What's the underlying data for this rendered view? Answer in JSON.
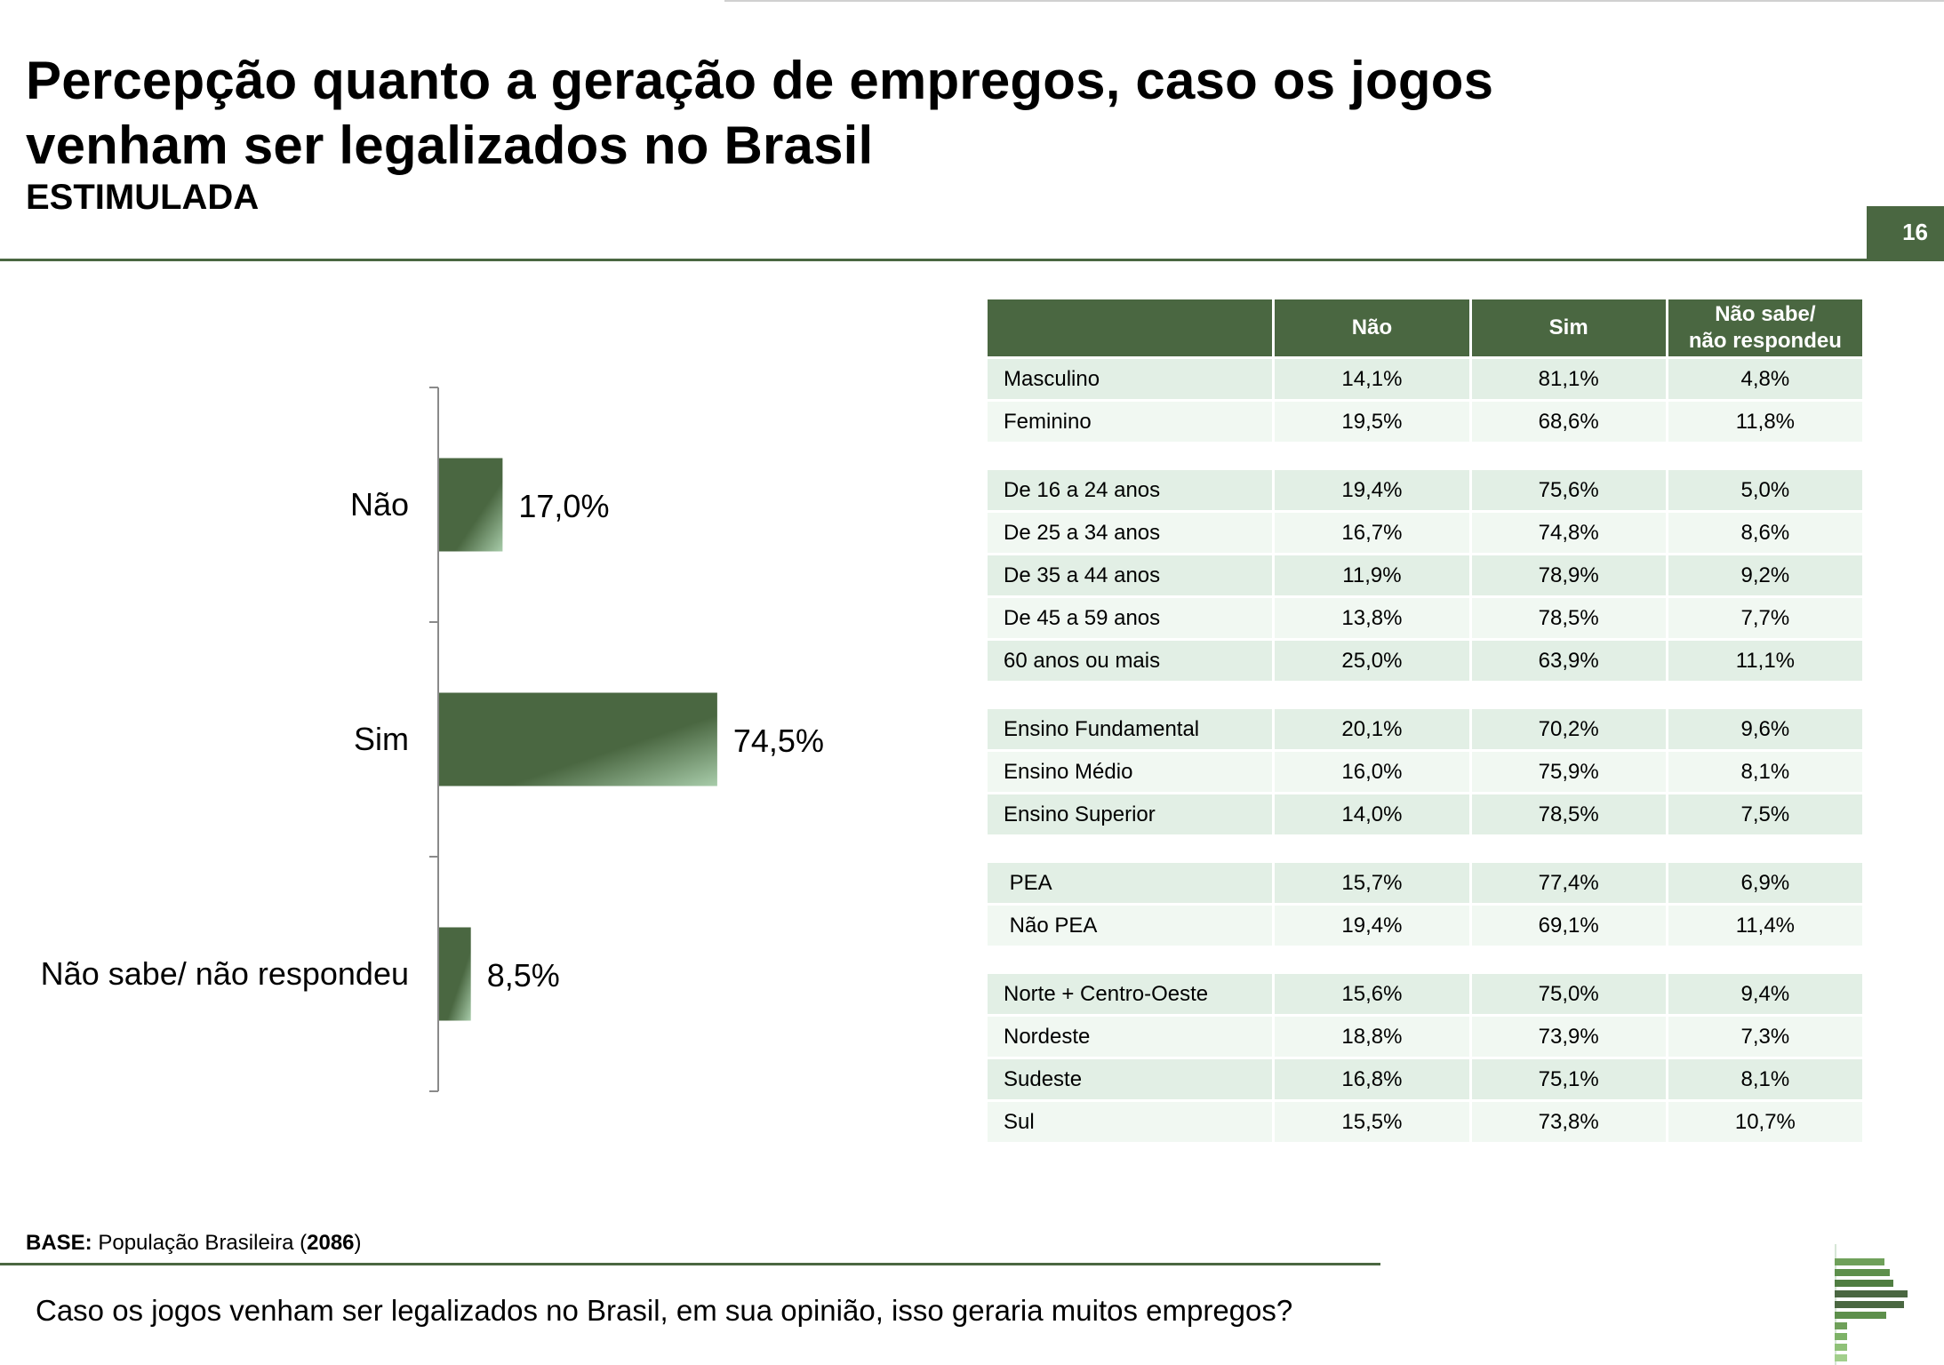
{
  "header": {
    "title_line1": "Percepção quanto a geração de empregos, caso os jogos",
    "title_line2": "venham ser legalizados no Brasil",
    "subtitle": "ESTIMULADA",
    "page_number": "16"
  },
  "chart_data": {
    "type": "bar",
    "orientation": "horizontal",
    "categories": [
      "Não",
      "Sim",
      "Não sabe/ não respondeu"
    ],
    "values": [
      17.0,
      74.5,
      8.5
    ],
    "value_labels": [
      "17,0%",
      "74,5%",
      "8,5%"
    ],
    "unit": "%",
    "xlim": [
      0,
      100
    ],
    "grid": false,
    "legend": "none",
    "bar_color": "#4a6741"
  },
  "table": {
    "columns": [
      "",
      "Não",
      "Sim",
      "Não sabe/\nnão respondeu"
    ],
    "groups": [
      [
        [
          "Masculino",
          "14,1%",
          "81,1%",
          "4,8%"
        ],
        [
          "Feminino",
          "19,5%",
          "68,6%",
          "11,8%"
        ]
      ],
      [
        [
          "De 16 a 24 anos",
          "19,4%",
          "75,6%",
          "5,0%"
        ],
        [
          "De 25 a 34 anos",
          "16,7%",
          "74,8%",
          "8,6%"
        ],
        [
          "De 35 a 44 anos",
          "11,9%",
          "78,9%",
          "9,2%"
        ],
        [
          "De 45 a 59 anos",
          "13,8%",
          "78,5%",
          "7,7%"
        ],
        [
          "60 anos ou mais",
          "25,0%",
          "63,9%",
          "11,1%"
        ]
      ],
      [
        [
          "Ensino Fundamental",
          "20,1%",
          "70,2%",
          "9,6%"
        ],
        [
          "Ensino Médio",
          "16,0%",
          "75,9%",
          "8,1%"
        ],
        [
          "Ensino Superior",
          "14,0%",
          "78,5%",
          "7,5%"
        ]
      ],
      [
        [
          " PEA",
          "15,7%",
          "77,4%",
          "6,9%"
        ],
        [
          " Não PEA",
          "19,4%",
          "69,1%",
          "11,4%"
        ]
      ],
      [
        [
          "Norte + Centro-Oeste",
          "15,6%",
          "75,0%",
          "9,4%"
        ],
        [
          "Nordeste",
          "18,8%",
          "73,9%",
          "7,3%"
        ],
        [
          "Sudeste",
          "16,8%",
          "75,1%",
          "8,1%"
        ],
        [
          "Sul",
          "15,5%",
          "73,8%",
          "10,7%"
        ]
      ]
    ]
  },
  "footer": {
    "base_label": "BASE:",
    "base_text": " População Brasileira (",
    "base_count": "2086",
    "base_close": ")",
    "question": "Caso os jogos venham ser legalizados no Brasil, em sua opinião, isso geraria muitos empregos?"
  },
  "colors": {
    "brand_green": "#4a6741",
    "row_light": "#e2efe5",
    "row_lighter": "#f1f8f2"
  },
  "icons": {
    "logo": "company-logo-stripes"
  }
}
